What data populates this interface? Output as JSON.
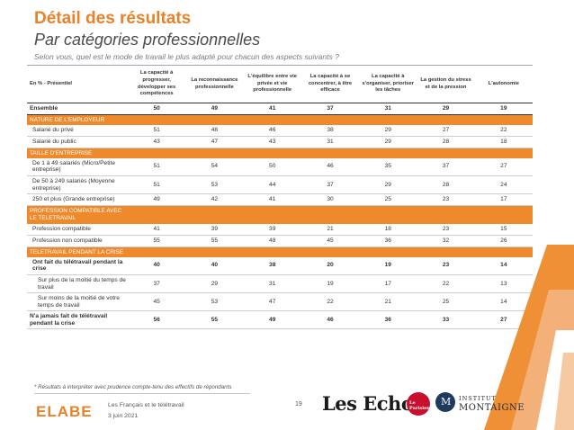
{
  "header": {
    "title": "Détail des résultats",
    "subtitle": "Par catégories professionnelles",
    "question": "Selon vous, quel est le mode de travail le plus adapté pour chacun des aspects suivants ?"
  },
  "table": {
    "columns": [
      "En % - Présentiel",
      "La capacité à progresser, développer ses compétences",
      "La reconnaissance professionnelle",
      "L'équilibre entre vie privée et vie professionnelle",
      "La capacité à se concentrer, à être efficace",
      "La capacité à s'organiser, prioriser les tâches",
      "La gestion du stress et de la pression",
      "L'autonomie"
    ],
    "ensemble": {
      "label": "Ensemble",
      "values": [
        "50",
        "49",
        "41",
        "37",
        "31",
        "29",
        "19"
      ]
    },
    "sections": [
      {
        "title": "NATURE DE L'EMPLOYEUR",
        "rows": [
          {
            "label": "Salarié du privé",
            "values": [
              "51",
              "48",
              "46",
              "38",
              "29",
              "27",
              "22"
            ]
          },
          {
            "label": "Salarié du public",
            "values": [
              "43",
              "47",
              "43",
              "31",
              "29",
              "28",
              "18"
            ]
          }
        ]
      },
      {
        "title": "TAILLE D'ENTREPRISE",
        "rows": [
          {
            "label": "De 1 à 49 salariés (Micro/Petite entreprise)",
            "values": [
              "51",
              "54",
              "50",
              "46",
              "35",
              "37",
              "27"
            ]
          },
          {
            "label": "De 50 à 249 salariés (Moyenne entreprise)",
            "values": [
              "51",
              "53",
              "44",
              "37",
              "29",
              "28",
              "24"
            ]
          },
          {
            "label": "250 et plus (Grande entreprise)",
            "values": [
              "49",
              "42",
              "41",
              "30",
              "25",
              "23",
              "17"
            ]
          }
        ]
      },
      {
        "title": "PROFESSION COMPATIBLE AVEC LE TELETRAVAIL",
        "rows": [
          {
            "label": "Profession compatible",
            "values": [
              "41",
              "39",
              "39",
              "21",
              "18",
              "23",
              "15"
            ]
          },
          {
            "label": "Profession non compatible",
            "values": [
              "55",
              "55",
              "48",
              "45",
              "36",
              "32",
              "26"
            ]
          }
        ]
      },
      {
        "title": "TELETRAVAIL PENDANT LA CRISE",
        "rows": [
          {
            "label": "Ont fait du télétravail pendant la crise",
            "values": [
              "40",
              "40",
              "38",
              "20",
              "19",
              "23",
              "14"
            ]
          },
          {
            "label": "Sur plus de la moitié du temps de travail",
            "values": [
              "37",
              "29",
              "31",
              "19",
              "17",
              "22",
              "13"
            ]
          },
          {
            "label": "Sur moins de la moitié de votre temps de travail",
            "values": [
              "45",
              "53",
              "47",
              "22",
              "21",
              "25",
              "14"
            ]
          },
          {
            "label": "N'a jamais fait de télétravail pendant la crise",
            "values": [
              "56",
              "55",
              "49",
              "46",
              "36",
              "33",
              "27"
            ]
          }
        ]
      }
    ]
  },
  "footer": {
    "footnote": "* Résultats à interpréter avec prudence compte-tenu des effectifs de répondants",
    "line1": "Les Français et le télétravail",
    "line2": "3 juin 2021",
    "page": "19",
    "elabe_logo": "ELABE",
    "lesechos_logo": "Les Echos",
    "parisien_logo": "Le Parisien",
    "montaigne_line1": "INSTITUT",
    "montaigne_line2": "MONTAIGNE",
    "montaigne_initial": "M"
  },
  "colors": {
    "accent": "#ee8a2c",
    "title": "#e8822a",
    "elabe_orange": "#e8822a",
    "parisien_red": "#c8102e",
    "montaigne_blue": "#1f3a5f"
  }
}
